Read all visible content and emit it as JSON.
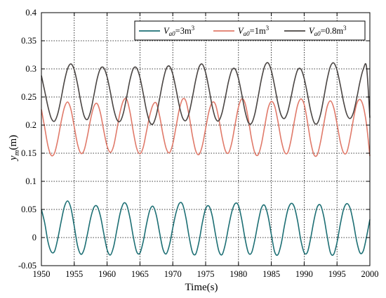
{
  "chart_data": {
    "type": "line",
    "xlabel": "Time(s)",
    "ylabel_main": "y",
    "ylabel_sub": "m",
    "ylabel_unit": "(m)",
    "xlim": [
      1950,
      2000
    ],
    "ylim": [
      -0.05,
      0.4
    ],
    "xticks": [
      1950,
      1955,
      1960,
      1965,
      1970,
      1975,
      1980,
      1985,
      1990,
      1995,
      2000
    ],
    "yticks": [
      -0.05,
      0,
      0.05,
      0.1,
      0.15,
      0.2,
      0.25,
      0.3,
      0.35,
      0.4
    ],
    "xtick_labels": [
      "1950",
      "1955",
      "1960",
      "1965",
      "1970",
      "1975",
      "1980",
      "1985",
      "1990",
      "1995",
      "2000"
    ],
    "ytick_labels": [
      "-0.05",
      "0",
      "0.05",
      "0.1",
      "0.15",
      "0.2",
      "0.25",
      "0.3",
      "0.35",
      "0.4"
    ],
    "grid": true,
    "legend_position": "top-right",
    "series": [
      {
        "legend_main": "V",
        "legend_sub": "a0",
        "legend_rest": "=3m",
        "legend_sup": "3",
        "color": "#1d6f74",
        "x": [
          1950,
          1950.5,
          1951,
          1951.5,
          1952,
          1952.5,
          1953,
          1953.5,
          1954,
          1954.5,
          1955,
          1955.5,
          1956,
          1956.5,
          1957,
          1957.5,
          1958,
          1958.5,
          1959,
          1959.5,
          1960,
          1960.5,
          1961,
          1961.5,
          1962,
          1962.5,
          1963,
          1963.5,
          1964,
          1964.5,
          1965,
          1965.5,
          1966,
          1966.5,
          1967,
          1967.5,
          1968,
          1968.5,
          1969,
          1969.5,
          1970,
          1970.5,
          1971,
          1971.5,
          1972,
          1972.5,
          1973,
          1973.5,
          1974,
          1974.5,
          1975,
          1975.5,
          1976,
          1976.5,
          1977,
          1977.5,
          1978,
          1978.5,
          1979,
          1979.5,
          1980,
          1980.5,
          1981,
          1981.5,
          1982,
          1982.5,
          1983,
          1983.5,
          1984,
          1984.5,
          1985,
          1985.5,
          1986,
          1986.5,
          1987,
          1987.5,
          1988,
          1988.5,
          1989,
          1989.5,
          1990,
          1990.5,
          1991,
          1991.5,
          1992,
          1992.5,
          1993,
          1993.5,
          1994,
          1994.5,
          1995,
          1995.5,
          1996,
          1996.5,
          1997,
          1997.5,
          1998,
          1998.5,
          1999,
          1999.5,
          2000
        ],
        "y": [
          0.05,
          0.0261,
          -0.0075,
          -0.0252,
          -0.0244,
          -0.0016,
          0.0283,
          0.0548,
          0.065,
          0.052,
          0.02,
          -0.0145,
          -0.0296,
          -0.0209,
          0.0057,
          0.0348,
          0.0539,
          0.0553,
          0.0374,
          0.007,
          -0.0214,
          -0.031,
          -0.0159,
          0.0144,
          0.0439,
          0.0608,
          0.0574,
          0.034,
          0.0005,
          -0.0251,
          -0.0275,
          -0.007,
          0.0237,
          0.0486,
          0.0555,
          0.0393,
          0.0083,
          -0.0206,
          -0.029,
          -0.0128,
          0.0172,
          0.0444,
          0.061,
          0.0588,
          0.0351,
          0.0004,
          -0.0263,
          -0.029,
          -0.0066,
          0.0264,
          0.0512,
          0.056,
          0.0387,
          0.0058,
          -0.0234,
          -0.0304,
          -0.0116,
          0.0195,
          0.0465,
          0.0606,
          0.0568,
          0.0318,
          -0.0019,
          -0.0266,
          -0.0268,
          -0.0034,
          0.0276,
          0.0527,
          0.0571,
          0.0384,
          0.0055,
          -0.0252,
          -0.0305,
          -0.0113,
          0.0213,
          0.0487,
          0.0606,
          0.0546,
          0.0295,
          -0.005,
          -0.0269,
          -0.0259,
          -0.0006,
          0.0312,
          0.0544,
          0.0573,
          0.0365,
          0.0024,
          -0.0269,
          -0.0296,
          -0.0088,
          0.0236,
          0.0503,
          0.0604,
          0.052,
          0.026,
          -0.0068,
          -0.0272,
          -0.0237,
          0.0016,
          0.0322
        ]
      },
      {
        "legend_main": "V",
        "legend_sub": "a0",
        "legend_rest": "=1m",
        "legend_sup": "3",
        "color": "#e07a6a",
        "x": [
          1950,
          1950.5,
          1951,
          1951.5,
          1952,
          1952.5,
          1953,
          1953.5,
          1954,
          1954.5,
          1955,
          1955.5,
          1956,
          1956.5,
          1957,
          1957.5,
          1958,
          1958.5,
          1959,
          1959.5,
          1960,
          1960.5,
          1961,
          1961.5,
          1962,
          1962.5,
          1963,
          1963.5,
          1964,
          1964.5,
          1965,
          1965.5,
          1966,
          1966.5,
          1967,
          1967.5,
          1968,
          1968.5,
          1969,
          1969.5,
          1970,
          1970.5,
          1971,
          1971.5,
          1972,
          1972.5,
          1973,
          1973.5,
          1974,
          1974.5,
          1975,
          1975.5,
          1976,
          1976.5,
          1977,
          1977.5,
          1978,
          1978.5,
          1979,
          1979.5,
          1980,
          1980.5,
          1981,
          1981.5,
          1982,
          1982.5,
          1983,
          1983.5,
          1984,
          1984.5,
          1985,
          1985.5,
          1986,
          1986.5,
          1987,
          1987.5,
          1988,
          1988.5,
          1989,
          1989.5,
          1990,
          1990.5,
          1991,
          1991.5,
          1992,
          1992.5,
          1993,
          1993.5,
          1994,
          1994.5,
          1995,
          1995.5,
          1996,
          1996.5,
          1997,
          1997.5,
          1998,
          1998.5,
          1999,
          1999.5,
          2000
        ],
        "y": [
          0.228,
          0.1957,
          0.1629,
          0.1462,
          0.1504,
          0.174,
          0.2057,
          0.2313,
          0.241,
          0.2276,
          0.1969,
          0.166,
          0.15,
          0.1553,
          0.1802,
          0.211,
          0.2335,
          0.238,
          0.2207,
          0.1897,
          0.1626,
          0.1515,
          0.1631,
          0.1928,
          0.2242,
          0.2439,
          0.2454,
          0.2224,
          0.1876,
          0.159,
          0.149,
          0.1606,
          0.189,
          0.2176,
          0.2363,
          0.2388,
          0.216,
          0.1838,
          0.1584,
          0.1508,
          0.1667,
          0.1973,
          0.2284,
          0.2462,
          0.2426,
          0.2157,
          0.1805,
          0.1541,
          0.1478,
          0.1637,
          0.1939,
          0.224,
          0.2402,
          0.2366,
          0.2115,
          0.1789,
          0.1548,
          0.1507,
          0.1697,
          0.2021,
          0.2321,
          0.2466,
          0.2392,
          0.2107,
          0.1748,
          0.1504,
          0.1472,
          0.1667,
          0.1987,
          0.2294,
          0.242,
          0.234,
          0.2071,
          0.1738,
          0.1523,
          0.1511,
          0.1735,
          0.2065,
          0.2353,
          0.2465,
          0.2368,
          0.2059,
          0.1699,
          0.1472,
          0.1474,
          0.1705,
          0.2028,
          0.2327,
          0.243,
          0.2309,
          0.2025,
          0.1703,
          0.1508,
          0.1521,
          0.1775,
          0.2104,
          0.2379,
          0.2456,
          0.2333,
          0.2003,
          0.145
        ]
      },
      {
        "legend_main": "V",
        "legend_sub": "a0",
        "legend_rest": "=0.8m",
        "legend_sup": "3",
        "color": "#4a4543",
        "x": [
          1950,
          1950.5,
          1951,
          1951.5,
          1952,
          1952.5,
          1953,
          1953.5,
          1954,
          1954.5,
          1955,
          1955.5,
          1956,
          1956.5,
          1957,
          1957.5,
          1958,
          1958.5,
          1959,
          1959.5,
          1960,
          1960.5,
          1961,
          1961.5,
          1962,
          1962.5,
          1963,
          1963.5,
          1964,
          1964.5,
          1965,
          1965.5,
          1966,
          1966.5,
          1967,
          1967.5,
          1968,
          1968.5,
          1969,
          1969.5,
          1970,
          1970.5,
          1971,
          1971.5,
          1972,
          1972.5,
          1973,
          1973.5,
          1974,
          1974.5,
          1975,
          1975.5,
          1976,
          1976.5,
          1977,
          1977.5,
          1978,
          1978.5,
          1979,
          1979.5,
          1980,
          1980.5,
          1981,
          1981.5,
          1982,
          1982.5,
          1983,
          1983.5,
          1984,
          1984.5,
          1985,
          1985.5,
          1986,
          1986.5,
          1987,
          1987.5,
          1988,
          1988.5,
          1989,
          1989.5,
          1990,
          1990.5,
          1991,
          1991.5,
          1992,
          1992.5,
          1993,
          1993.5,
          1994,
          1994.5,
          1995,
          1995.5,
          1996,
          1996.5,
          1997,
          1997.5,
          1998,
          1998.5,
          1999,
          1999.5,
          2000
        ],
        "y": [
          0.288,
          0.2606,
          0.2328,
          0.2121,
          0.207,
          0.2207,
          0.2474,
          0.2781,
          0.3009,
          0.3088,
          0.2983,
          0.2729,
          0.2412,
          0.2165,
          0.21,
          0.2249,
          0.2535,
          0.2829,
          0.3009,
          0.3016,
          0.2856,
          0.2585,
          0.2289,
          0.2096,
          0.207,
          0.2226,
          0.2514,
          0.2813,
          0.3007,
          0.3015,
          0.2848,
          0.2564,
          0.2259,
          0.2052,
          0.2024,
          0.2185,
          0.2476,
          0.2781,
          0.3003,
          0.3047,
          0.2905,
          0.2637,
          0.2339,
          0.2127,
          0.2082,
          0.2223,
          0.25,
          0.2807,
          0.3034,
          0.3082,
          0.2933,
          0.2653,
          0.2338,
          0.2121,
          0.2078,
          0.222,
          0.2493,
          0.2783,
          0.2981,
          0.2995,
          0.2827,
          0.2547,
          0.2246,
          0.2046,
          0.2034,
          0.2205,
          0.2507,
          0.2823,
          0.3051,
          0.3107,
          0.2969,
          0.2698,
          0.2393,
          0.2175,
          0.2118,
          0.2239,
          0.2494,
          0.2779,
          0.2979,
          0.2996,
          0.2831,
          0.2552,
          0.225,
          0.205,
          0.2031,
          0.2196,
          0.2495,
          0.2812,
          0.3044,
          0.3105,
          0.2977,
          0.2714,
          0.2414,
          0.2189,
          0.2117,
          0.2224,
          0.2476,
          0.2773,
          0.2993,
          0.3029,
          0.213
        ]
      }
    ]
  }
}
